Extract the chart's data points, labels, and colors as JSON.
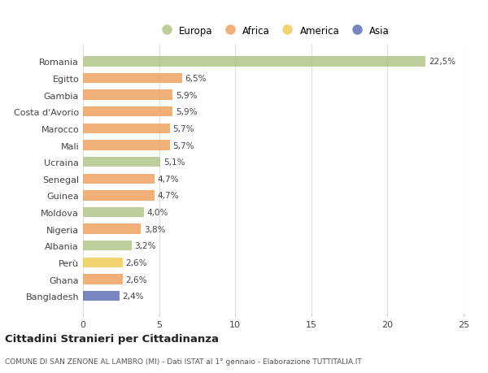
{
  "countries": [
    "Romania",
    "Egitto",
    "Gambia",
    "Costa d'Avorio",
    "Marocco",
    "Mali",
    "Ucraina",
    "Senegal",
    "Guinea",
    "Moldova",
    "Nigeria",
    "Albania",
    "Perù",
    "Ghana",
    "Bangladesh"
  ],
  "values": [
    22.5,
    6.5,
    5.9,
    5.9,
    5.7,
    5.7,
    5.1,
    4.7,
    4.7,
    4.0,
    3.8,
    3.2,
    2.6,
    2.6,
    2.4
  ],
  "labels": [
    "22,5%",
    "6,5%",
    "5,9%",
    "5,9%",
    "5,7%",
    "5,7%",
    "5,1%",
    "4,7%",
    "4,7%",
    "4,0%",
    "3,8%",
    "3,2%",
    "2,6%",
    "2,6%",
    "2,4%"
  ],
  "continents": [
    "Europa",
    "Africa",
    "Africa",
    "Africa",
    "Africa",
    "Africa",
    "Europa",
    "Africa",
    "Africa",
    "Europa",
    "Africa",
    "Europa",
    "America",
    "Africa",
    "Asia"
  ],
  "colors": {
    "Europa": "#b5c98e",
    "Africa": "#f0a868",
    "America": "#f0d060",
    "Asia": "#6878b8"
  },
  "legend_order": [
    "Europa",
    "Africa",
    "America",
    "Asia"
  ],
  "title": "Cittadini Stranieri per Cittadinanza",
  "subtitle": "COMUNE DI SAN ZENONE AL LAMBRO (MI) - Dati ISTAT al 1° gennaio - Elaborazione TUTTITALIA.IT",
  "xlim": [
    0,
    25
  ],
  "xticks": [
    0,
    5,
    10,
    15,
    20,
    25
  ],
  "background_color": "#ffffff",
  "grid_color": "#e0e0e0"
}
